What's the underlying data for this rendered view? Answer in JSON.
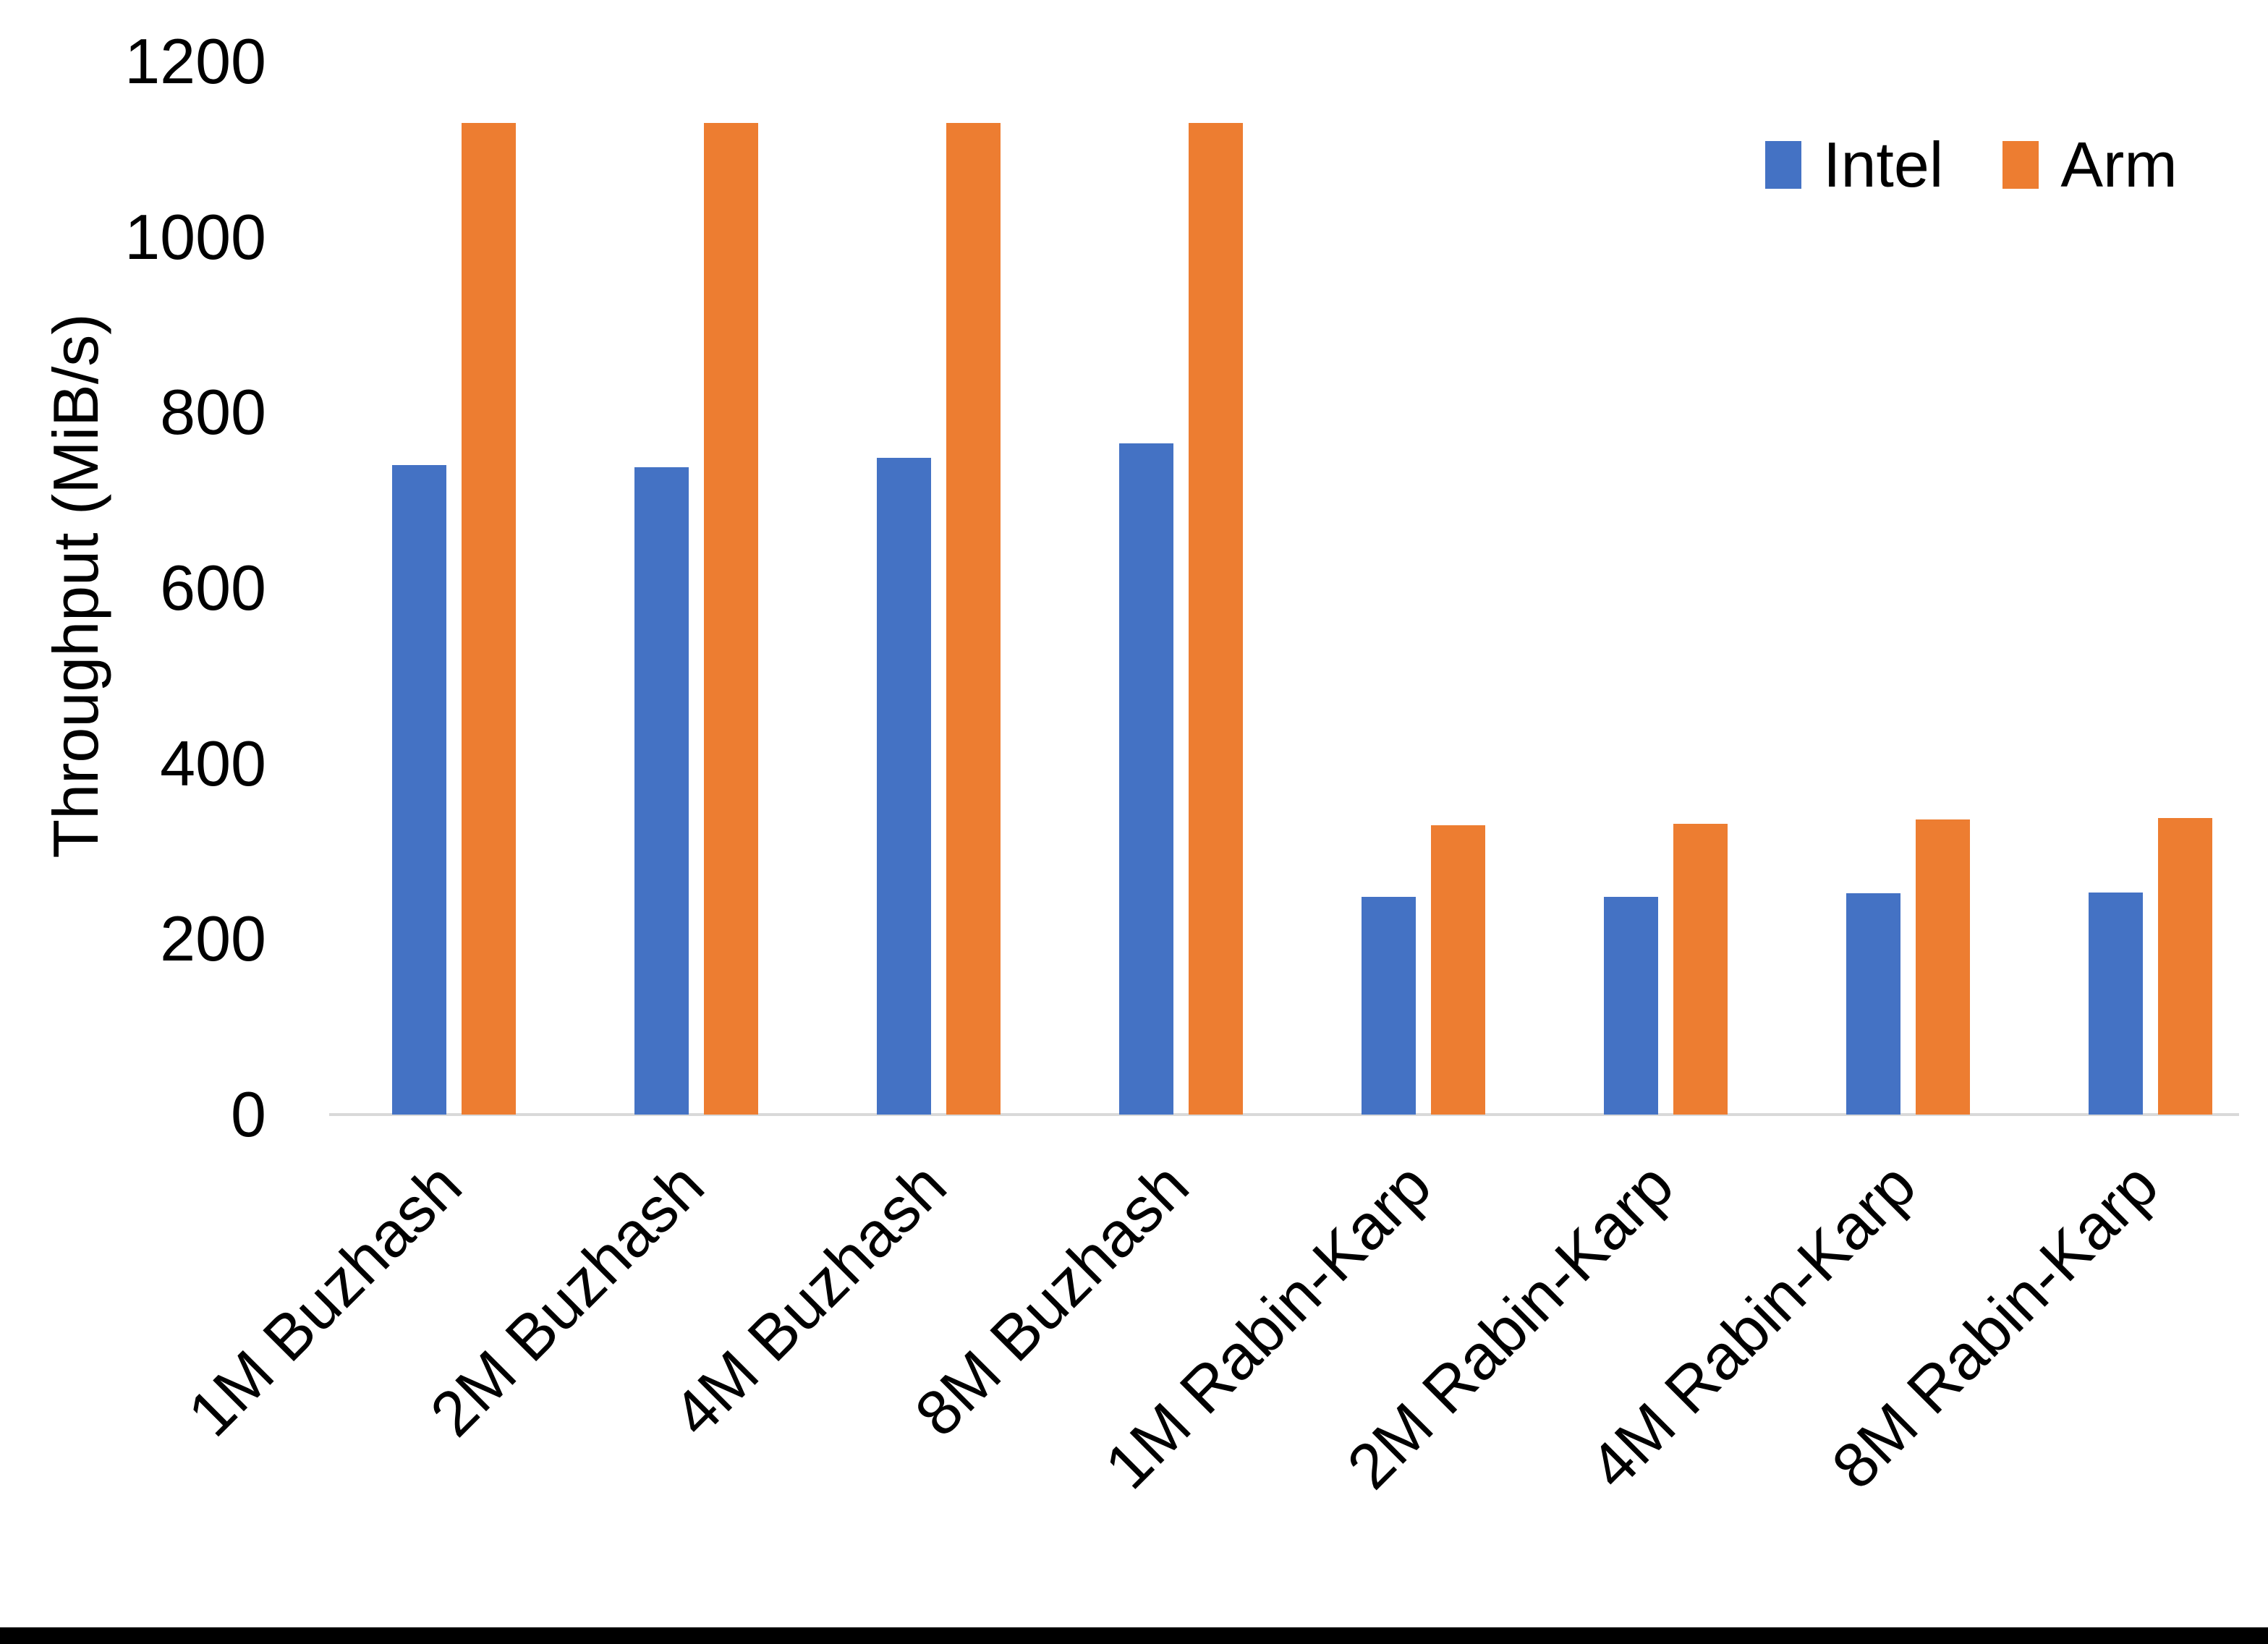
{
  "chart_data": {
    "type": "bar",
    "title": "",
    "categories": [
      "1M Buzhash",
      "2M Buzhash",
      "4M Buzhash",
      "8M Buzhash",
      "1M Rabin-Karp",
      "2M Rabin-Karp",
      "4M Rabin-Karp",
      "8M Rabin-Karp"
    ],
    "series": [
      {
        "name": "Intel",
        "color": "#4472C4",
        "values": [
          740,
          738,
          748,
          765,
          248,
          248,
          252,
          253
        ]
      },
      {
        "name": "Arm",
        "color": "#ED7D31",
        "values": [
          1130,
          1130,
          1130,
          1130,
          330,
          331,
          336,
          338
        ]
      }
    ],
    "xlabel": "",
    "ylabel": "Throughput (MiB/s)",
    "ylim": [
      0,
      1200
    ],
    "yticks": [
      0,
      200,
      400,
      600,
      800,
      1000,
      1200
    ],
    "grid": false,
    "legend_position": "top-right",
    "axis_line_color": "#D9D9D9",
    "text_color": "#000000"
  }
}
